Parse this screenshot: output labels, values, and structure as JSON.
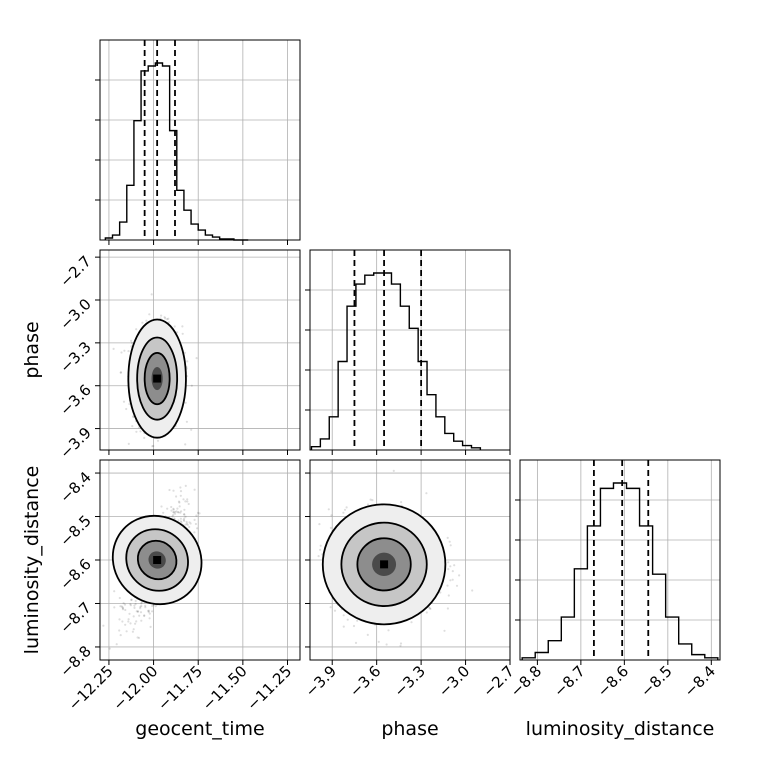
{
  "chart_data": [
    {
      "type": "histogram",
      "panel": "geocent_time",
      "bin_centers": [
        -12.25,
        -12.21,
        -12.17,
        -12.13,
        -12.09,
        -12.05,
        -12.01,
        -11.97,
        -11.93,
        -11.89,
        -11.85,
        -11.81,
        -11.77,
        -11.73,
        -11.69,
        -11.65,
        -11.61,
        -11.57,
        -11.53,
        -11.49
      ],
      "counts": [
        2,
        5,
        18,
        55,
        120,
        170,
        175,
        178,
        175,
        110,
        50,
        30,
        16,
        10,
        5,
        3,
        1,
        1,
        0,
        0
      ],
      "quantiles": [
        -12.05,
        -11.98,
        -11.88
      ],
      "xlim": [
        -12.3,
        -11.18
      ],
      "xticks": [
        "-12.25",
        "-12.00",
        "-11.75",
        "-11.50",
        "-11.25"
      ],
      "grid": true
    },
    {
      "type": "scatter",
      "panel": "geocent_time vs phase",
      "peak": {
        "x": -11.98,
        "y": -3.55
      },
      "spread": {
        "x": 0.07,
        "y": 0.18
      },
      "xlim": [
        -12.3,
        -11.18
      ],
      "ylim": [
        -4.05,
        -2.65
      ],
      "yticks": [
        "-2.7",
        "-3.0",
        "-3.3",
        "-3.6",
        "-3.9"
      ],
      "grid": true
    },
    {
      "type": "histogram",
      "panel": "phase",
      "bin_centers": [
        -4.01,
        -3.95,
        -3.89,
        -3.83,
        -3.77,
        -3.71,
        -3.65,
        -3.59,
        -3.53,
        -3.47,
        -3.41,
        -3.35,
        -3.29,
        -3.23,
        -3.17,
        -3.11,
        -3.05,
        -2.99,
        -2.93
      ],
      "counts": [
        3,
        10,
        30,
        80,
        130,
        150,
        158,
        160,
        160,
        150,
        130,
        110,
        80,
        50,
        30,
        15,
        8,
        4,
        2
      ],
      "quantiles": [
        -3.75,
        -3.55,
        -3.3
      ],
      "xlim": [
        -4.05,
        -2.7
      ],
      "xticks": [
        "-3.9",
        "-3.6",
        "-3.3",
        "-3.0",
        "-2.7"
      ],
      "grid": true
    },
    {
      "type": "scatter",
      "panel": "geocent_time vs luminosity_distance",
      "peak": {
        "x": -11.98,
        "y": -8.6
      },
      "spread": {
        "x": 0.08,
        "y": 0.06
      },
      "correlation": 0.7,
      "xlim": [
        -12.3,
        -11.18
      ],
      "ylim": [
        -8.83,
        -8.37
      ],
      "yticks": [
        "-8.4",
        "-8.5",
        "-8.6",
        "-8.7",
        "-8.8"
      ],
      "grid": true
    },
    {
      "type": "scatter",
      "panel": "phase vs luminosity_distance",
      "peak": {
        "x": -3.55,
        "y": -8.61
      },
      "spread": {
        "x": 0.18,
        "y": 0.06
      },
      "xlim": [
        -4.05,
        -2.7
      ],
      "ylim": [
        -8.83,
        -8.37
      ],
      "grid": true
    },
    {
      "type": "histogram",
      "panel": "luminosity_distance",
      "bin_centers": [
        -8.82,
        -8.79,
        -8.76,
        -8.73,
        -8.7,
        -8.67,
        -8.64,
        -8.61,
        -8.58,
        -8.55,
        -8.52,
        -8.49,
        -8.46,
        -8.43,
        -8.4
      ],
      "counts": [
        2,
        7,
        18,
        40,
        85,
        125,
        160,
        165,
        160,
        125,
        80,
        40,
        15,
        5,
        2
      ],
      "quantiles": [
        -8.67,
        -8.605,
        -8.545
      ],
      "xlim": [
        -8.84,
        -8.38
      ],
      "xticks": [
        "-8.8",
        "-8.7",
        "-8.6",
        "-8.5",
        "-8.4"
      ],
      "grid": true
    }
  ],
  "labels": {
    "x": [
      "geocent_time",
      "phase",
      "luminosity_distance"
    ],
    "y": [
      "phase",
      "luminosity_distance"
    ]
  }
}
